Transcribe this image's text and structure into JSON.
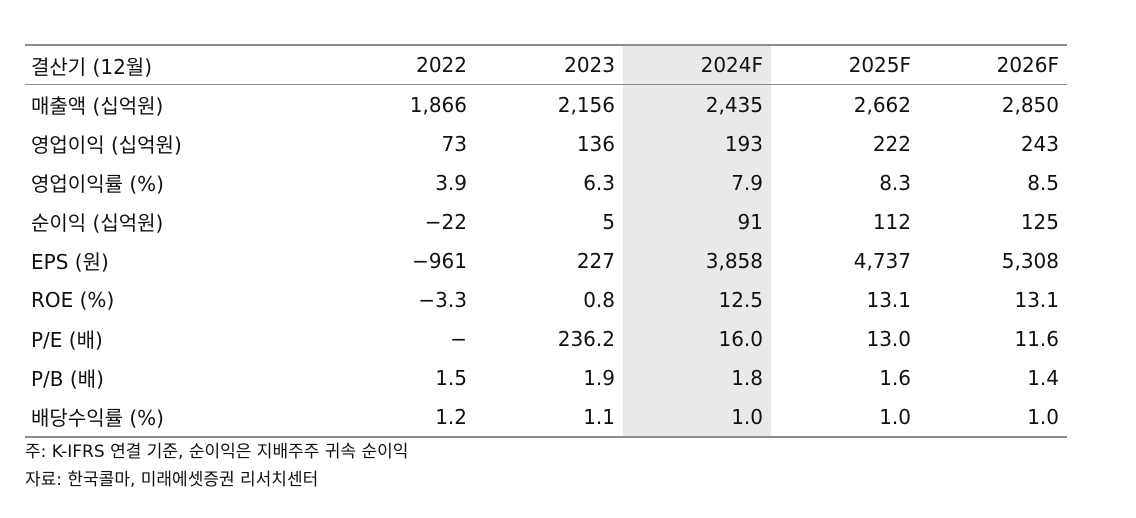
{
  "table": {
    "header": [
      "결산기 (12월)",
      "2022",
      "2023",
      "2024F",
      "2025F",
      "2026F"
    ],
    "rows": [
      {
        "label": "매출액 (십억원)",
        "values": [
          "1,866",
          "2,156",
          "2,435",
          "2,662",
          "2,850"
        ]
      },
      {
        "label": "영업이익 (십억원)",
        "values": [
          "73",
          "136",
          "193",
          "222",
          "243"
        ]
      },
      {
        "label": "영업이익률 (%)",
        "values": [
          "3.9",
          "6.3",
          "7.9",
          "8.3",
          "8.5"
        ]
      },
      {
        "label": "순이익 (십억원)",
        "values": [
          "−22",
          "5",
          "91",
          "112",
          "125"
        ]
      },
      {
        "label": "EPS (원)",
        "values": [
          "−961",
          "227",
          "3,858",
          "4,737",
          "5,308"
        ]
      },
      {
        "label": "ROE (%)",
        "values": [
          "−3.3",
          "0.8",
          "12.5",
          "13.1",
          "13.1"
        ]
      },
      {
        "label": "P/E (배)",
        "values": [
          "−",
          "236.2",
          "16.0",
          "13.0",
          "11.6"
        ]
      },
      {
        "label": "P/B (배)",
        "values": [
          "1.5",
          "1.9",
          "1.8",
          "1.6",
          "1.4"
        ]
      },
      {
        "label": "배당수익률 (%)",
        "values": [
          "1.2",
          "1.1",
          "1.0",
          "1.0",
          "1.0"
        ]
      }
    ]
  },
  "notes": {
    "note": "주: K-IFRS 연결 기준, 순이익은 지배주주 귀속 순이익",
    "source": "자료: 한국콜마, 미래에셋증권 리서치센터"
  },
  "colors": {
    "shaded_column": "#e9e9e9",
    "rule": "#8c8c8c"
  }
}
